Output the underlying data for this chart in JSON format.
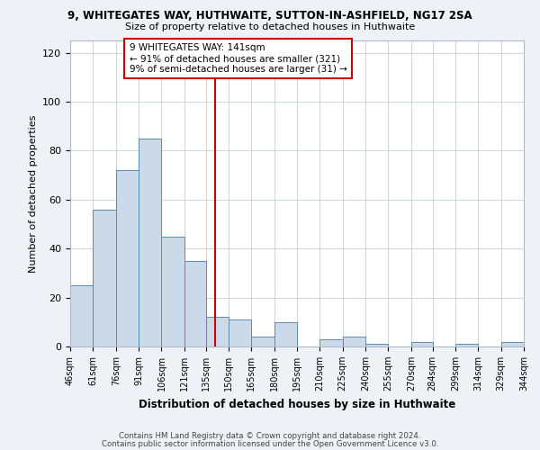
{
  "title1": "9, WHITEGATES WAY, HUTHWAITE, SUTTON-IN-ASHFIELD, NG17 2SA",
  "title2": "Size of property relative to detached houses in Huthwaite",
  "xlabel": "Distribution of detached houses by size in Huthwaite",
  "ylabel": "Number of detached properties",
  "annotation_line1": "9 WHITEGATES WAY: 141sqm",
  "annotation_line2": "← 91% of detached houses are smaller (321)",
  "annotation_line3": "9% of semi-detached houses are larger (31) →",
  "bar_color": "#ccd9e8",
  "bar_edge_color": "#5a8ab0",
  "vline_x": 141,
  "vline_color": "#cc0000",
  "bin_edges": [
    46,
    61,
    76,
    91,
    106,
    121,
    135,
    150,
    165,
    180,
    195,
    210,
    225,
    240,
    255,
    270,
    284,
    299,
    314,
    329,
    344
  ],
  "bin_heights": [
    25,
    56,
    72,
    85,
    45,
    35,
    12,
    11,
    4,
    10,
    0,
    3,
    4,
    1,
    0,
    2,
    0,
    1,
    0,
    2
  ],
  "ylim": [
    0,
    125
  ],
  "yticks": [
    0,
    20,
    40,
    60,
    80,
    100,
    120
  ],
  "xtick_labels": [
    "46sqm",
    "61sqm",
    "76sqm",
    "91sqm",
    "106sqm",
    "121sqm",
    "135sqm",
    "150sqm",
    "165sqm",
    "180sqm",
    "195sqm",
    "210sqm",
    "225sqm",
    "240sqm",
    "255sqm",
    "270sqm",
    "284sqm",
    "299sqm",
    "314sqm",
    "329sqm",
    "344sqm"
  ],
  "footer1": "Contains HM Land Registry data © Crown copyright and database right 2024.",
  "footer2": "Contains public sector information licensed under the Open Government Licence v3.0.",
  "background_color": "#eef2f7",
  "plot_background_color": "#ffffff",
  "grid_color": "#c5cfd8"
}
